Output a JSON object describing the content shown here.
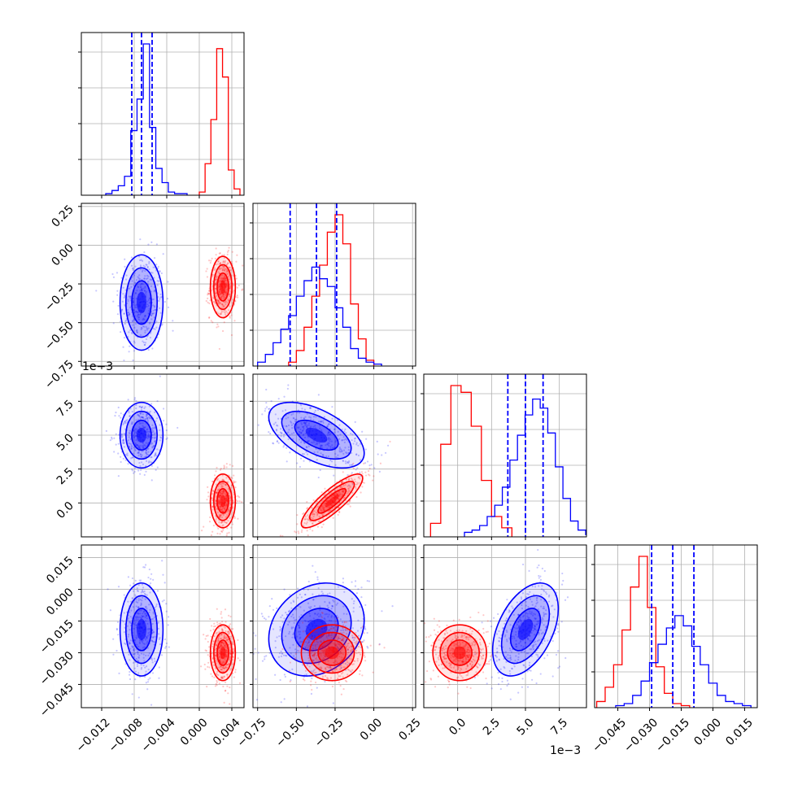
{
  "chart_data": {
    "type": "scatter",
    "plot_kind": "corner",
    "grid": true,
    "colors": {
      "blue": "#0000ff",
      "red": "#ff0000",
      "axes": "#000000",
      "grid": "#b0b0b0"
    },
    "axes": [
      {
        "range": [
          -0.0145,
          0.0055
        ],
        "ticks": [
          -0.012,
          -0.008,
          -0.004,
          0.0,
          0.004
        ],
        "tick_labels": [
          "−0.012",
          "−0.008",
          "−0.004",
          "0.000",
          "0.004"
        ]
      },
      {
        "range": [
          -0.78,
          0.27
        ],
        "ticks": [
          -0.75,
          -0.5,
          -0.25,
          0.0,
          0.25
        ],
        "tick_labels": [
          "−0.75",
          "−0.50",
          "−0.25",
          "0.00",
          "0.25"
        ]
      },
      {
        "range": [
          -2.5,
          9.5
        ],
        "ticks": [
          0.0,
          2.5,
          5.0,
          7.5
        ],
        "tick_labels": [
          "0.0",
          "2.5",
          "5.0",
          "7.5"
        ],
        "offset_text": "1e−3"
      },
      {
        "range": [
          -0.056,
          0.021
        ],
        "ticks": [
          -0.045,
          -0.03,
          -0.015,
          0.0,
          0.015
        ],
        "tick_labels": [
          "−0.045",
          "−0.030",
          "−0.015",
          "0.000",
          "0.015"
        ]
      }
    ],
    "series": [
      {
        "color": "blue",
        "mean": [
          -0.0071,
          -0.37,
          5.0,
          -0.019
        ],
        "std": [
          0.0012,
          0.14,
          1.1,
          0.01
        ],
        "pair_correlations": {
          "1-0": 0.0,
          "2-0": 0.0,
          "2-1": -0.55,
          "3-0": 0.0,
          "3-1": 0.2,
          "3-2": 0.45
        },
        "quantile_lines": [
          [
            -0.0083,
            -0.0071,
            -0.0058
          ],
          [
            -0.54,
            -0.37,
            -0.24
          ],
          [
            3.7,
            5.0,
            6.3
          ],
          [
            -0.029,
            -0.019,
            -0.009
          ]
        ]
      },
      {
        "color": "red",
        "mean": [
          0.0029,
          -0.27,
          0.15,
          -0.03
        ],
        "std": [
          0.0007,
          0.09,
          0.9,
          0.006
        ],
        "pair_correlations": {
          "1-0": 0.0,
          "2-0": 0.0,
          "2-1": 0.85,
          "3-0": 0.0,
          "3-1": 0.0,
          "3-2": 0.0
        }
      }
    ],
    "histograms": [
      {
        "axis": 0,
        "blue": {
          "edges_range": [
            -0.0115,
            -0.0015
          ],
          "counts": [
            1,
            3,
            6,
            12,
            41,
            61,
            96,
            43,
            17,
            8,
            2,
            1,
            1
          ]
        },
        "red": {
          "edges_range": [
            0.0,
            0.005
          ],
          "counts": [
            2,
            20,
            48,
            93,
            75,
            16,
            4
          ]
        }
      },
      {
        "axis": 1,
        "blue": {
          "edges_range": [
            -0.75,
            0.05
          ],
          "counts": [
            2,
            6,
            12,
            19,
            26,
            36,
            44,
            51,
            45,
            41,
            30,
            20,
            9,
            4,
            2,
            1
          ]
        },
        "red": {
          "edges_range": [
            -0.55,
            0.0
          ],
          "counts": [
            2,
            8,
            20,
            36,
            52,
            69,
            78,
            63,
            32,
            14,
            3
          ]
        }
      },
      {
        "axis": 2,
        "blue": {
          "edges_range": [
            0.5,
            10.0
          ],
          "counts": [
            2,
            3,
            5,
            9,
            14,
            22,
            34,
            45,
            54,
            61,
            57,
            46,
            31,
            17,
            7,
            3,
            1
          ]
        },
        "red": {
          "edges_range": [
            -2.0,
            4.0
          ],
          "counts": [
            6,
            41,
            67,
            64,
            49,
            25,
            9,
            4
          ]
        }
      },
      {
        "axis": 3,
        "blue": {
          "edges_range": [
            -0.046,
            0.018
          ],
          "counts": [
            1,
            2,
            6,
            13,
            22,
            31,
            39,
            45,
            40,
            30,
            21,
            12,
            6,
            3,
            2,
            1
          ]
        },
        "red": {
          "edges_range": [
            -0.055,
            -0.011
          ],
          "counts": [
            3,
            10,
            21,
            38,
            59,
            74,
            49,
            20,
            7,
            2,
            1
          ]
        }
      }
    ],
    "title": "",
    "legend": "none"
  }
}
